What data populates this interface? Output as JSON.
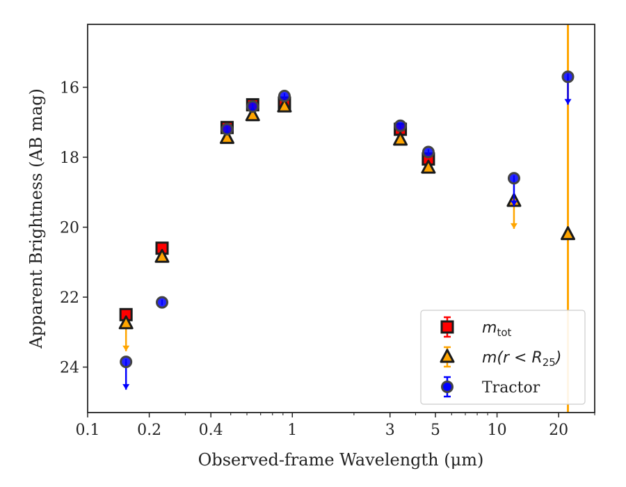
{
  "chart_data": {
    "type": "scatter",
    "title": "",
    "xlabel": "Observed-frame Wavelength (μm)",
    "ylabel": "Apparent Brightness (AB mag)",
    "xscale": "log",
    "xlim": [
      0.1,
      30
    ],
    "ylim": [
      25.3,
      14.2
    ],
    "y_inverted": true,
    "x_ticks": [
      {
        "value": 0.1,
        "label": "0.1"
      },
      {
        "value": 0.2,
        "label": "0.2"
      },
      {
        "value": 0.4,
        "label": "0.4"
      },
      {
        "value": 1,
        "label": "1"
      },
      {
        "value": 3,
        "label": "3"
      },
      {
        "value": 5,
        "label": "5"
      },
      {
        "value": 10,
        "label": "10"
      },
      {
        "value": 20,
        "label": "20"
      }
    ],
    "y_ticks": [
      {
        "value": 16,
        "label": "16"
      },
      {
        "value": 18,
        "label": "18"
      },
      {
        "value": 20,
        "label": "20"
      },
      {
        "value": 22,
        "label": "22"
      },
      {
        "value": 24,
        "label": "24"
      }
    ],
    "grid": false,
    "legend_position": "bottom-right",
    "series": [
      {
        "name": "m_tot",
        "legend_label": "m",
        "legend_sub": "tot",
        "marker": "square",
        "color": "#ff0000",
        "edge_color": "#1a1a1a",
        "points": [
          {
            "x": 0.154,
            "y": 22.5
          },
          {
            "x": 0.231,
            "y": 20.6
          },
          {
            "x": 0.48,
            "y": 17.15
          },
          {
            "x": 0.64,
            "y": 16.5
          },
          {
            "x": 0.915,
            "y": 16.45
          },
          {
            "x": 3.37,
            "y": 17.2
          },
          {
            "x": 4.62,
            "y": 18.05
          }
        ]
      },
      {
        "name": "m(r < R25)",
        "legend_label": "m(r < R",
        "legend_sub": "25",
        "legend_suffix": ")",
        "marker": "triangle",
        "color": "#ffa500",
        "edge_color": "#1a1a1a",
        "points": [
          {
            "x": 0.154,
            "y": 22.75,
            "upper_limit": true
          },
          {
            "x": 0.231,
            "y": 20.85
          },
          {
            "x": 0.48,
            "y": 17.45
          },
          {
            "x": 0.64,
            "y": 16.8
          },
          {
            "x": 0.915,
            "y": 16.55
          },
          {
            "x": 3.37,
            "y": 17.5
          },
          {
            "x": 4.62,
            "y": 18.3
          },
          {
            "x": 12.1,
            "y": 19.25,
            "upper_limit": true
          },
          {
            "x": 22.2,
            "y": 20.2
          }
        ],
        "vertical_band": {
          "x": 22.2,
          "label": ""
        }
      },
      {
        "name": "Tractor",
        "legend_label": "Tractor",
        "marker": "circle",
        "color": "#0000ff",
        "edge_color": "#444444",
        "points": [
          {
            "x": 0.154,
            "y": 23.85,
            "upper_limit": true
          },
          {
            "x": 0.231,
            "y": 22.15
          },
          {
            "x": 0.48,
            "y": 17.2
          },
          {
            "x": 0.64,
            "y": 16.55
          },
          {
            "x": 0.915,
            "y": 16.25
          },
          {
            "x": 3.37,
            "y": 17.1
          },
          {
            "x": 4.62,
            "y": 17.85
          },
          {
            "x": 12.1,
            "y": 18.6,
            "upper_limit": true
          },
          {
            "x": 22.2,
            "y": 15.7,
            "upper_limit": true
          }
        ]
      }
    ]
  }
}
